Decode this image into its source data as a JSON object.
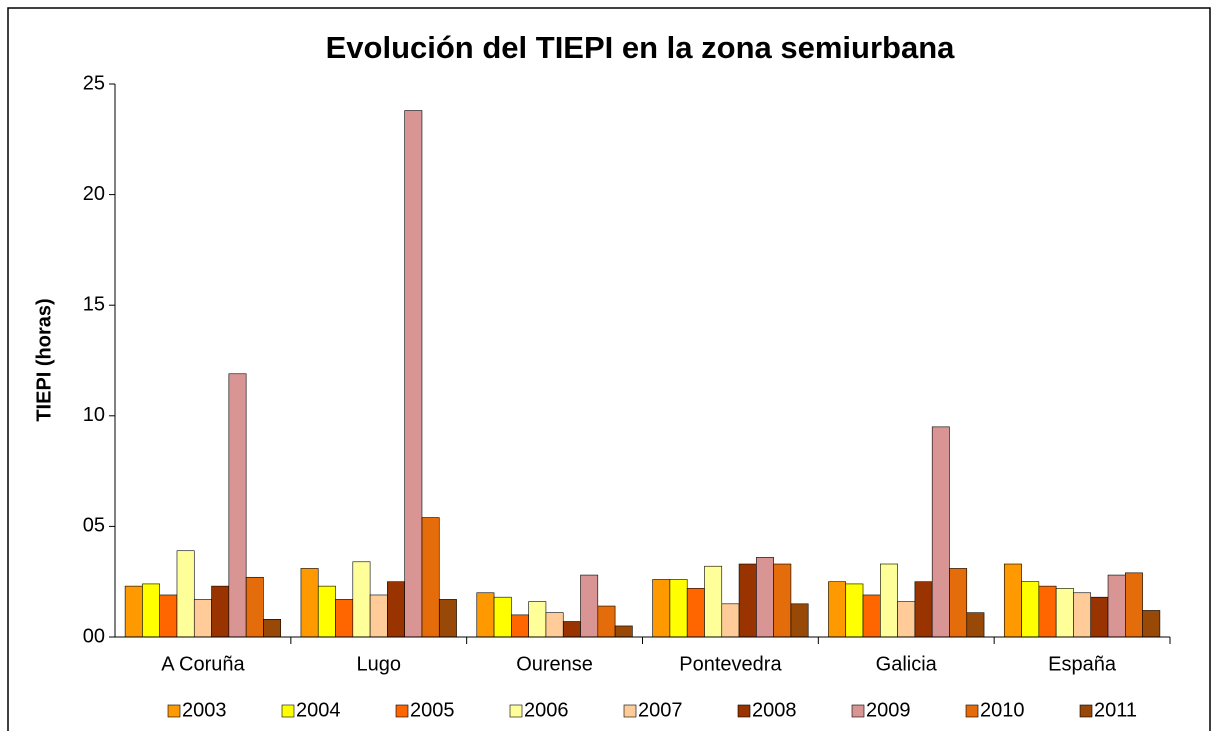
{
  "chart_data": {
    "type": "bar",
    "title": "Evolución del TIEPI en la zona semiurbana",
    "y_label": "TIEPI (horas)",
    "categories": [
      "A Coruña",
      "Lugo",
      "Ourense",
      "Pontevedra",
      "Galicia",
      "España"
    ],
    "series": [
      {
        "name": "2003",
        "color": "#ff9900",
        "values": [
          2.3,
          3.1,
          2.0,
          2.6,
          2.5,
          3.3
        ]
      },
      {
        "name": "2004",
        "color": "#ffff00",
        "values": [
          2.4,
          2.3,
          1.8,
          2.6,
          2.4,
          2.5
        ]
      },
      {
        "name": "2005",
        "color": "#ff6600",
        "values": [
          1.9,
          1.7,
          1.0,
          2.2,
          1.9,
          2.3
        ]
      },
      {
        "name": "2006",
        "color": "#ffff99",
        "values": [
          3.9,
          3.4,
          1.6,
          3.2,
          3.3,
          2.2
        ]
      },
      {
        "name": "2007",
        "color": "#ffcc99",
        "values": [
          1.7,
          1.9,
          1.1,
          1.5,
          1.6,
          2.0
        ]
      },
      {
        "name": "2008",
        "color": "#993300",
        "values": [
          2.3,
          2.5,
          0.7,
          3.3,
          2.5,
          1.8
        ]
      },
      {
        "name": "2009",
        "color": "#d99594",
        "values": [
          11.9,
          23.8,
          2.8,
          3.6,
          9.5,
          2.8
        ]
      },
      {
        "name": "2010",
        "color": "#e46c0a",
        "values": [
          2.7,
          5.4,
          1.4,
          3.3,
          3.1,
          2.9
        ]
      },
      {
        "name": "2011",
        "color": "#984807",
        "values": [
          0.8,
          1.7,
          0.5,
          1.5,
          1.1,
          1.2
        ]
      }
    ],
    "ylim": [
      0,
      25
    ],
    "yticks": [
      {
        "value": 0,
        "label": "00"
      },
      {
        "value": 5,
        "label": "05"
      },
      10,
      15,
      20,
      25
    ],
    "grid": false,
    "legend": "bottom"
  }
}
